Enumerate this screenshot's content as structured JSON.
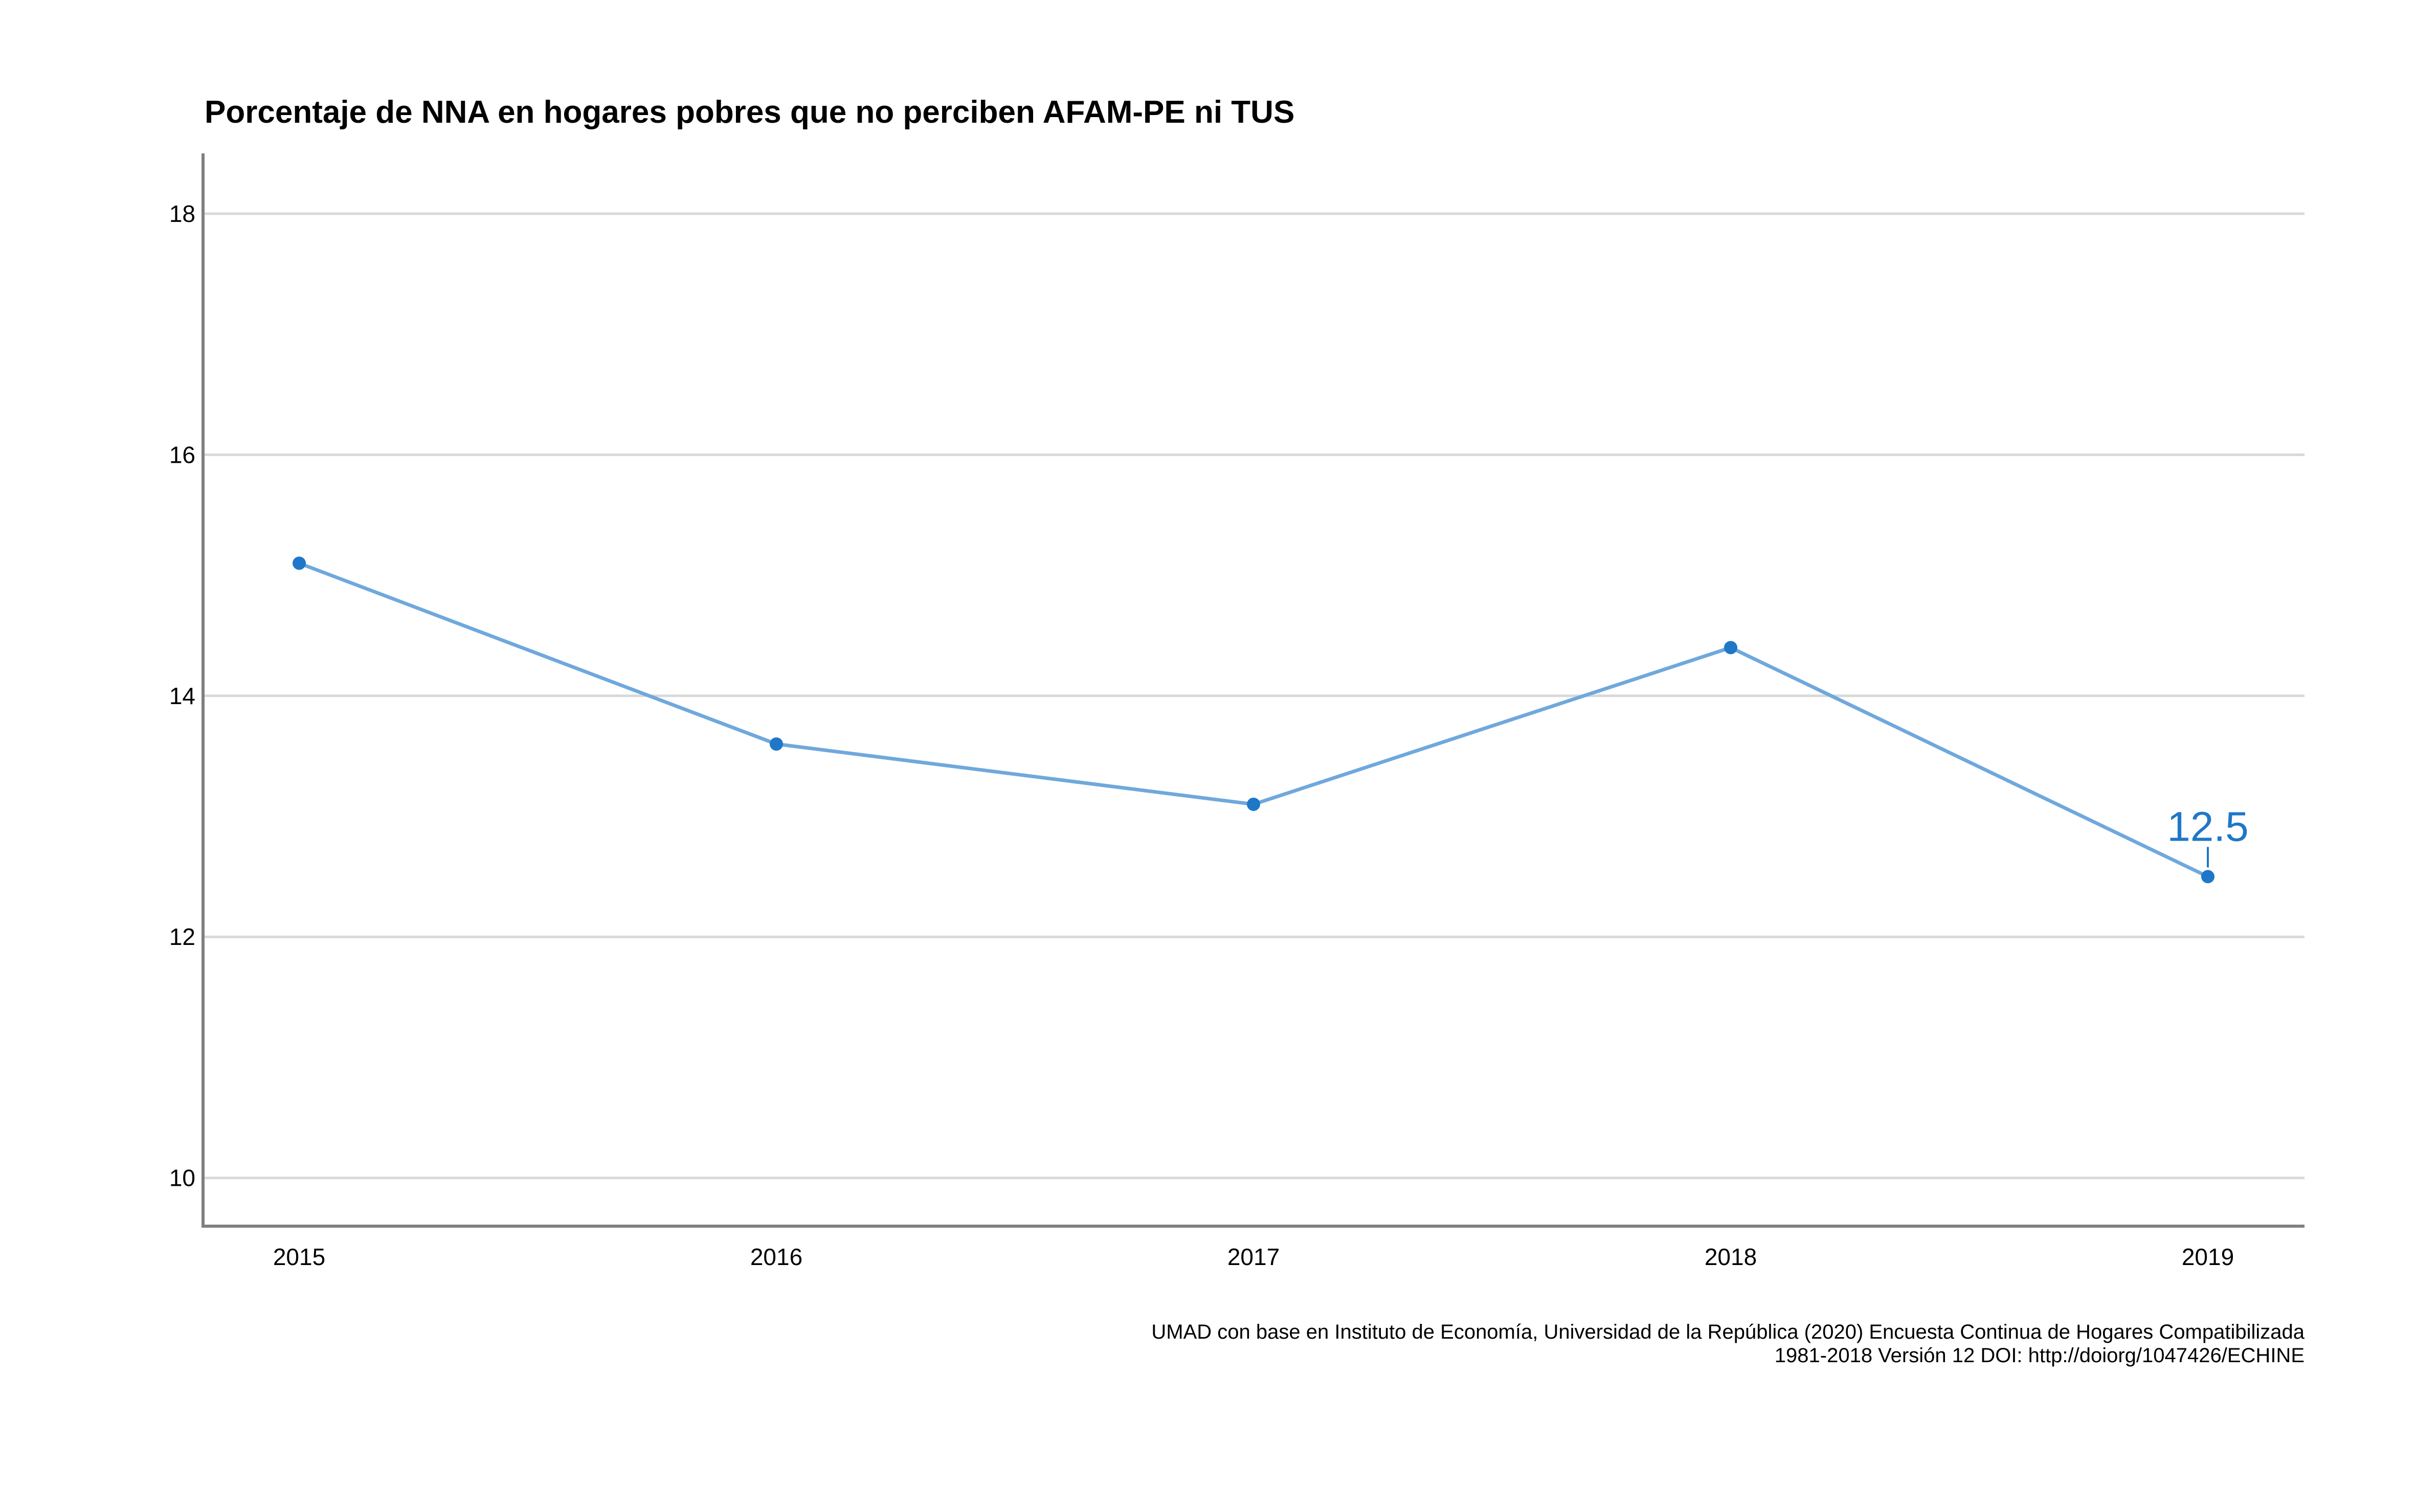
{
  "chart_data": {
    "type": "line",
    "title": "Porcentaje de NNA en hogares pobres que no perciben AFAM-PE ni TUS",
    "xlabel": "",
    "ylabel": "",
    "categories": [
      "2015",
      "2016",
      "2017",
      "2018",
      "2019"
    ],
    "series": [
      {
        "values": [
          15.1,
          13.6,
          13.1,
          14.4,
          12.5
        ]
      }
    ],
    "ylim": [
      9.6,
      18.5
    ],
    "yticks": [
      "10",
      "12",
      "14",
      "16",
      "18"
    ],
    "annotation": {
      "category": "2019",
      "value": 12.5,
      "text": "12.5"
    },
    "caption_lines": [
      "UMAD con base en Instituto de Economía, Universidad de la República (2020) Encuesta Continua de Hogares Compatibilizada",
      "1981-2018 Versión 12 DOI: http://doiorg/1047426/ECHINE"
    ],
    "grid": "horizontal",
    "legend": "none",
    "colors": {
      "line": "#6FA8DC",
      "points": "#1F77C8",
      "label": "#1F77C8",
      "grid": "#D9D9D9",
      "axis": "#808080"
    }
  }
}
